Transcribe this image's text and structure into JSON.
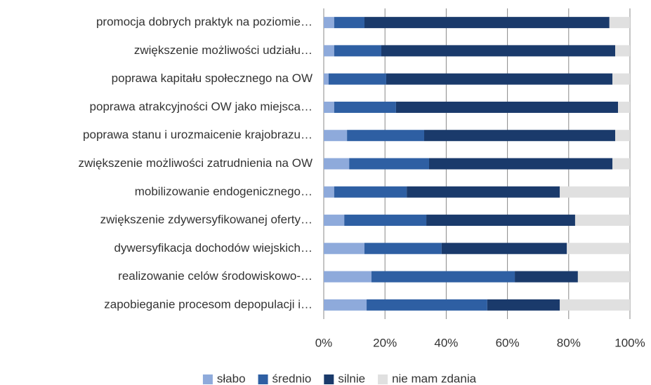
{
  "chart_data": {
    "type": "bar",
    "orientation": "horizontal",
    "stacked": true,
    "categories": [
      "promocja dobrych praktyk na poziomie…",
      "zwiększenie możliwości udziału…",
      "poprawa kapitału społecznego na OW",
      "poprawa atrakcyjności OW jako miejsca…",
      "poprawa stanu i urozmaicenie krajobrazu…",
      "zwiększenie możliwości zatrudnienia na OW",
      "mobilizowanie endogenicznego…",
      "zwiększenie zdywersyfikowanej oferty…",
      "dywersyfikacja dochodów wiejskich…",
      "realizowanie celów środowiskowo-…",
      "zapobieganie procesom depopulacji i…"
    ],
    "series": [
      {
        "name": "słabo",
        "color": "#8eaadb",
        "values": [
          3.4,
          3.4,
          1.6,
          3.4,
          7.6,
          8.3,
          3.4,
          6.7,
          13.3,
          15.6,
          14.0
        ]
      },
      {
        "name": "średnio",
        "color": "#2e5fa3",
        "values": [
          9.9,
          15.4,
          18.8,
          20.2,
          25.2,
          26.1,
          23.7,
          26.8,
          25.2,
          46.8,
          39.4
        ]
      },
      {
        "name": "silnie",
        "color": "#1a3a6b",
        "values": [
          80.0,
          76.4,
          73.9,
          72.5,
          62.4,
          59.9,
          50.0,
          48.6,
          40.9,
          20.6,
          23.7
        ]
      },
      {
        "name": "nie mam zdania",
        "color": "#e0e0e0",
        "values": [
          6.7,
          4.8,
          5.7,
          3.9,
          4.8,
          5.7,
          22.9,
          17.9,
          20.6,
          17.0,
          22.9
        ]
      }
    ],
    "xlim": [
      0,
      100
    ],
    "xticks": [
      {
        "value": 0,
        "label": "0%"
      },
      {
        "value": 20,
        "label": "20%"
      },
      {
        "value": 40,
        "label": "40%"
      },
      {
        "value": 60,
        "label": "60%"
      },
      {
        "value": 80,
        "label": "80%"
      },
      {
        "value": 100,
        "label": "100%"
      }
    ],
    "grid": true,
    "legend": "bottom"
  }
}
